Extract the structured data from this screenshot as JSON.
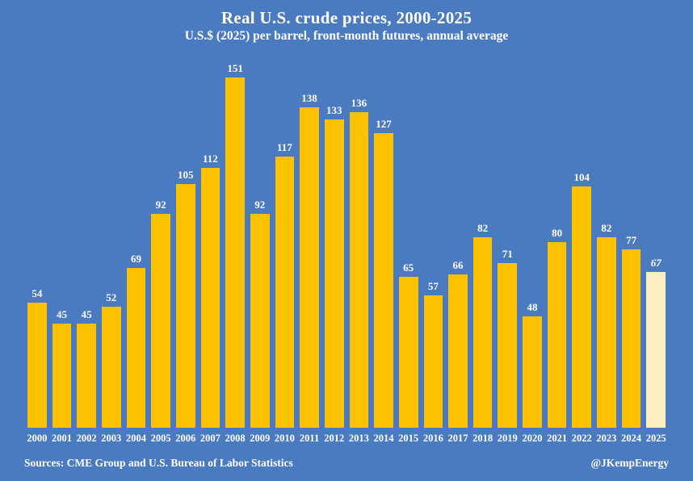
{
  "title": "Real U.S. crude prices, 2000-2025",
  "subtitle": "U.S.$ (2025) per barrel, front-month futures, annual average",
  "footer": {
    "sources": "Sources: CME Group and U.S. Bureau of Labor Statistics",
    "credit": "@JKempEnergy"
  },
  "colors": {
    "background": "#4A7ABF",
    "bar": "#FCC200",
    "bar_highlight": "#FCF0C3",
    "text": "#FFFFFF"
  },
  "chart_data": {
    "type": "bar",
    "title": "Real U.S. crude prices, 2000-2025",
    "subtitle": "U.S.$ (2025) per barrel, front-month futures, annual average",
    "categories": [
      "2000",
      "2001",
      "2002",
      "2003",
      "2004",
      "2005",
      "2006",
      "2007",
      "2008",
      "2009",
      "2010",
      "2011",
      "2012",
      "2013",
      "2014",
      "2015",
      "2016",
      "2017",
      "2018",
      "2019",
      "2020",
      "2021",
      "2022",
      "2023",
      "2024",
      "2025"
    ],
    "values": [
      54,
      45,
      45,
      52,
      69,
      92,
      105,
      112,
      151,
      92,
      117,
      138,
      133,
      136,
      127,
      65,
      57,
      66,
      82,
      71,
      48,
      80,
      104,
      82,
      77,
      67
    ],
    "xlabel": "",
    "ylabel": "",
    "ylim": [
      0,
      160
    ],
    "grid": false,
    "legend": false,
    "data_labels": true,
    "highlight_index": 25,
    "highlight_note": "2025 bar shown in cream with italic value label (partial-year estimate)"
  }
}
